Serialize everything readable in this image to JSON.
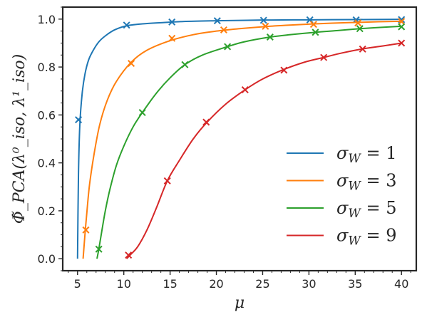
{
  "chart_data": {
    "type": "line",
    "title": "",
    "xlabel": "μ",
    "ylabel": "Φ̃_PCA(λ⁰_iso, λ¹_iso)",
    "xlim": [
      3.4,
      41.6
    ],
    "ylim": [
      -0.05,
      1.05
    ],
    "xticks": [
      "5",
      "10",
      "15",
      "20",
      "25",
      "30",
      "35",
      "40"
    ],
    "yticks": [
      "0.0",
      "0.2",
      "0.4",
      "0.6",
      "0.8",
      "1.0"
    ],
    "grid": false,
    "legend_position": "lower-right",
    "series": [
      {
        "name": "σ_W = 1",
        "color": "#1f77b4",
        "x": [
          5.0,
          5.1,
          5.25,
          5.5,
          5.8,
          6.2,
          6.7,
          7.3,
          8.0,
          9.0,
          10.3,
          12.0,
          14.0,
          16.5,
          20.0,
          25.0,
          30.0,
          35.0,
          40.0
        ],
        "y": [
          0.0,
          0.35,
          0.56,
          0.69,
          0.77,
          0.83,
          0.87,
          0.905,
          0.93,
          0.955,
          0.972,
          0.98,
          0.985,
          0.99,
          0.993,
          0.996,
          0.997,
          0.998,
          0.999
        ],
        "markers": [
          [
            5.1,
            0.58
          ],
          [
            10.3,
            0.975
          ],
          [
            15.2,
            0.988
          ],
          [
            20.1,
            0.993
          ],
          [
            25.1,
            0.995
          ],
          [
            30.1,
            0.997
          ],
          [
            35.1,
            0.997
          ],
          [
            40.0,
            0.998
          ]
        ]
      },
      {
        "name": "σ_W = 3",
        "color": "#ff7f0e",
        "x": [
          5.6,
          5.8,
          6.0,
          6.3,
          6.8,
          7.4,
          8.2,
          9.2,
          10.8,
          12.5,
          15.0,
          17.5,
          20.0,
          22.5,
          25.0,
          27.5,
          30.0,
          32.5,
          35.0,
          37.5,
          40.0
        ],
        "y": [
          0.0,
          0.1,
          0.19,
          0.31,
          0.44,
          0.56,
          0.66,
          0.74,
          0.82,
          0.87,
          0.91,
          0.935,
          0.95,
          0.96,
          0.968,
          0.974,
          0.979,
          0.983,
          0.986,
          0.989,
          0.991
        ],
        "markers": [
          [
            5.9,
            0.12
          ],
          [
            10.8,
            0.815
          ],
          [
            15.2,
            0.92
          ],
          [
            20.8,
            0.955
          ],
          [
            25.3,
            0.97
          ],
          [
            30.5,
            0.978
          ],
          [
            35.3,
            0.984
          ],
          [
            40.0,
            0.99
          ]
        ]
      },
      {
        "name": "σ_W = 5",
        "color": "#2ca02c",
        "x": [
          7.1,
          7.3,
          7.6,
          8.0,
          8.5,
          9.2,
          10.0,
          11.0,
          12.0,
          13.5,
          15.0,
          16.6,
          18.5,
          21.2,
          23.0,
          25.8,
          28.0,
          30.7,
          33.0,
          35.5,
          37.5,
          40.0
        ],
        "y": [
          0.0,
          0.04,
          0.11,
          0.2,
          0.29,
          0.39,
          0.47,
          0.55,
          0.61,
          0.69,
          0.755,
          0.81,
          0.85,
          0.885,
          0.905,
          0.925,
          0.935,
          0.945,
          0.952,
          0.96,
          0.965,
          0.97
        ],
        "markers": [
          [
            7.3,
            0.04
          ],
          [
            12.0,
            0.61
          ],
          [
            16.6,
            0.81
          ],
          [
            21.2,
            0.885
          ],
          [
            25.8,
            0.925
          ],
          [
            30.7,
            0.945
          ],
          [
            35.5,
            0.96
          ],
          [
            40.0,
            0.968
          ]
        ]
      },
      {
        "name": "σ_W = 9",
        "color": "#d62728",
        "x": [
          10.3,
          10.8,
          11.5,
          12.5,
          13.5,
          14.7,
          16.0,
          17.5,
          19.0,
          21.0,
          23.1,
          25.0,
          27.3,
          29.5,
          31.6,
          33.5,
          35.7,
          38.0,
          40.0
        ],
        "y": [
          0.0,
          0.02,
          0.05,
          0.12,
          0.21,
          0.325,
          0.41,
          0.5,
          0.57,
          0.645,
          0.705,
          0.75,
          0.79,
          0.82,
          0.84,
          0.858,
          0.875,
          0.888,
          0.9
        ],
        "markers": [
          [
            10.5,
            0.015
          ],
          [
            14.7,
            0.325
          ],
          [
            18.9,
            0.57
          ],
          [
            23.1,
            0.705
          ],
          [
            27.3,
            0.787
          ],
          [
            31.6,
            0.84
          ],
          [
            35.8,
            0.875
          ],
          [
            40.0,
            0.9
          ]
        ]
      }
    ]
  }
}
